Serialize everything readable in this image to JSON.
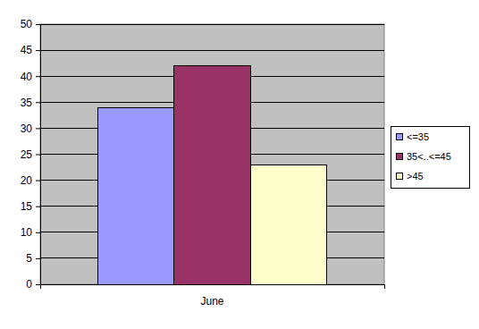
{
  "chart_data": {
    "type": "bar",
    "categories": [
      "June"
    ],
    "series": [
      {
        "name": "<=35",
        "color": "#9999ff",
        "values": [
          34
        ]
      },
      {
        "name": "35<..<=45",
        "color": "#993366",
        "values": [
          42
        ]
      },
      {
        "name": ">45",
        "color": "#ffffcc",
        "values": [
          23
        ]
      }
    ],
    "ylim": [
      0,
      50
    ],
    "yticks": [
      0,
      5,
      10,
      15,
      20,
      25,
      30,
      35,
      40,
      45,
      50
    ],
    "grid": true,
    "legend": "right"
  }
}
